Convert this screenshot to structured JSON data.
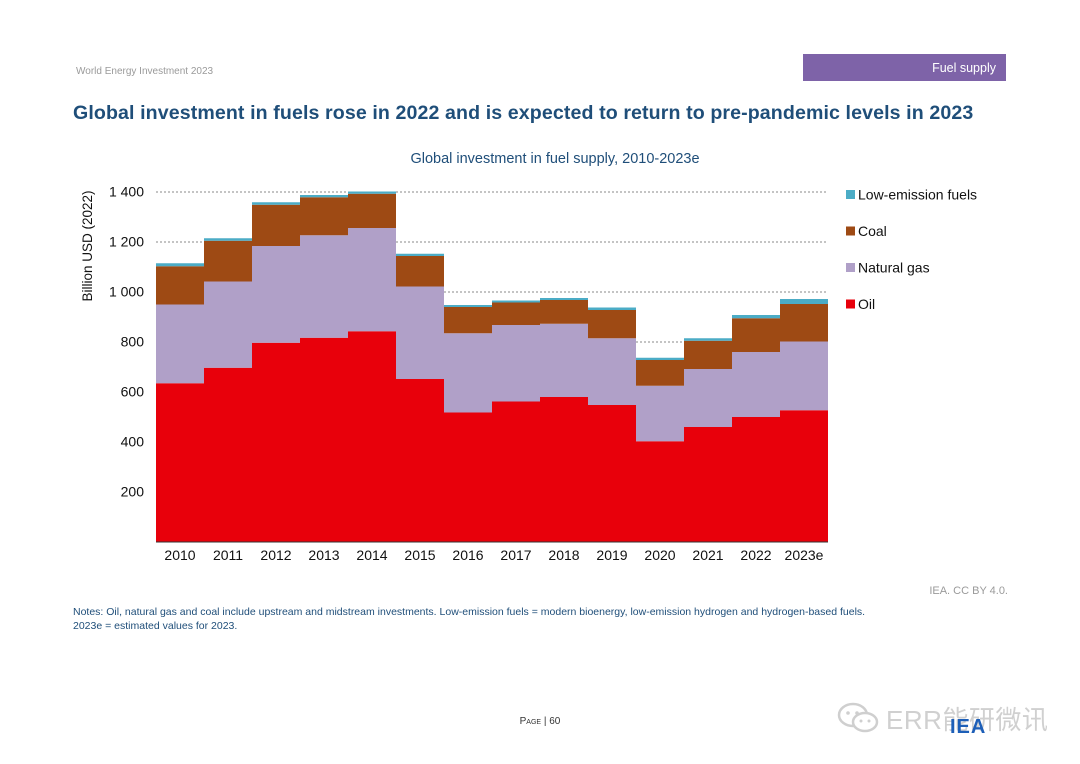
{
  "header": {
    "report_name": "World Energy Investment 2023",
    "section_tab": "Fuel supply",
    "headline": "Global investment in fuels rose in 2022 and is expected to return to pre-pandemic levels in 2023"
  },
  "chart_data": {
    "type": "bar",
    "stacked": true,
    "title": "Global investment in fuel supply, 2010-2023e",
    "xlabel": "",
    "ylabel": "Billion USD (2022)",
    "ylim": [
      0,
      1400
    ],
    "yticks": [
      200,
      400,
      600,
      800,
      1000,
      1200,
      1400
    ],
    "ytick_labels": [
      "200",
      "400",
      "600",
      "800",
      "1 000",
      "1 200",
      "1 400"
    ],
    "grid": true,
    "legend_position": "right",
    "categories": [
      "2010",
      "2011",
      "2012",
      "2013",
      "2014",
      "2015",
      "2016",
      "2017",
      "2018",
      "2019",
      "2020",
      "2021",
      "2022",
      "2023e"
    ],
    "series": [
      {
        "name": "Oil",
        "color": "#e8000b",
        "values": [
          635,
          697,
          797,
          817,
          843,
          652,
          518,
          562,
          580,
          548,
          403,
          460,
          500,
          527
        ]
      },
      {
        "name": "Natural gas",
        "color": "#b0a0c8",
        "values": [
          315,
          345,
          387,
          410,
          413,
          370,
          317,
          306,
          293,
          267,
          222,
          232,
          260,
          275
        ]
      },
      {
        "name": "Coal",
        "color": "#9e4a14",
        "values": [
          153,
          163,
          165,
          152,
          137,
          122,
          105,
          90,
          95,
          113,
          103,
          113,
          135,
          150
        ]
      },
      {
        "name": "Low-emission fuels",
        "color": "#4bacc6",
        "values": [
          12,
          10,
          10,
          9,
          9,
          9,
          8,
          8,
          8,
          10,
          9,
          10,
          13,
          20
        ]
      }
    ],
    "legend_order": [
      "Low-emission fuels",
      "Coal",
      "Natural gas",
      "Oil"
    ]
  },
  "footer": {
    "credit": "IEA. CC BY 4.0.",
    "notes_line1": "Notes: Oil, natural gas and coal include upstream and midstream investments. Low-emission fuels = modern bioenergy, low-emission hydrogen and hydrogen-based fuels.",
    "notes_line2": "2023e = estimated values for 2023.",
    "page_word": "Page",
    "page_number": "| 60"
  },
  "watermark": {
    "text": "ERR能研微讯",
    "logo": "IEA",
    "icon": "wechat-icon"
  }
}
